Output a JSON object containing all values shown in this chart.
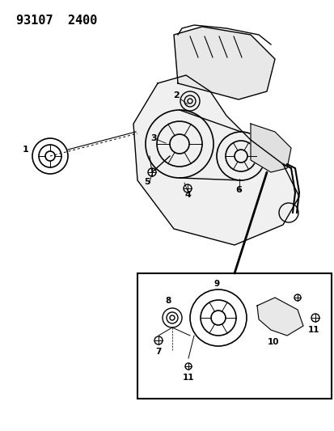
{
  "title": "93107  2400",
  "background_color": "#ffffff",
  "line_color": "#000000",
  "fig_width": 4.14,
  "fig_height": 5.33,
  "dpi": 100
}
